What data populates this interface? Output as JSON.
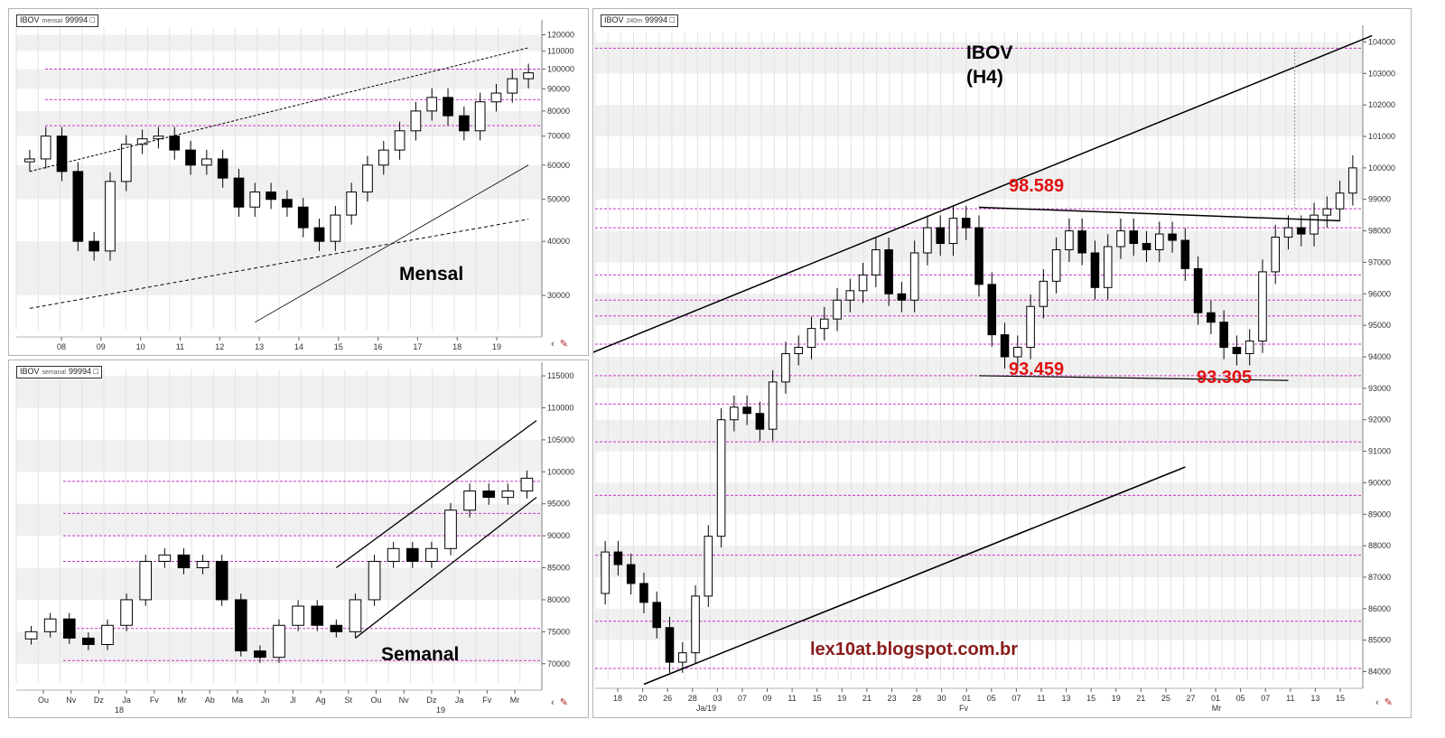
{
  "colors": {
    "band": "#f0f0f0",
    "dotted": "#cc33cc",
    "red_label": "#e01010",
    "brand": "#8a1a1a"
  },
  "panels": {
    "monthly": {
      "symbol": "IBOV",
      "interval": "mensal",
      "last": "99994",
      "label": "Mensal",
      "y_ticks": [
        "120000",
        "110000",
        "100000",
        "90000",
        "80000",
        "70000",
        "60000",
        "50000",
        "40000",
        "30000"
      ],
      "x_ticks": [
        "08",
        "09",
        "10",
        "11",
        "12",
        "13",
        "14",
        "15",
        "16",
        "17",
        "18",
        "19"
      ]
    },
    "weekly": {
      "symbol": "IBOV",
      "interval": "semanal",
      "last": "99994",
      "label": "Semanal",
      "y_ticks": [
        "115000",
        "110000",
        "105000",
        "100000",
        "95000",
        "90000",
        "85000",
        "80000",
        "75000",
        "70000"
      ],
      "x_ticks": [
        "Ou",
        "Nv",
        "Dz",
        "Ja",
        "Fv",
        "Mr",
        "Ab",
        "Ma",
        "Jn",
        "Jl",
        "Ag",
        "St",
        "Ou",
        "Nv",
        "Dz",
        "Ja",
        "Fv",
        "Mr"
      ],
      "x_sub": [
        "18",
        "19"
      ]
    },
    "h4": {
      "symbol": "IBOV",
      "interval": "240m",
      "last": "99994",
      "title_line1": "IBOV",
      "title_line2": "(H4)",
      "y_ticks": [
        "104000",
        "103000",
        "102000",
        "101000",
        "100000",
        "99000",
        "98000",
        "97000",
        "96000",
        "95000",
        "94000",
        "93000",
        "92000",
        "91000",
        "90000",
        "89000",
        "88000",
        "87000",
        "86000",
        "85000",
        "84000"
      ],
      "x_ticks": [
        "18",
        "20",
        "26",
        "28",
        "03",
        "07",
        "09",
        "11",
        "15",
        "19",
        "21",
        "23",
        "28",
        "30",
        "01",
        "05",
        "07",
        "11",
        "13",
        "15",
        "19",
        "21",
        "25",
        "27",
        "01",
        "05",
        "07",
        "11",
        "13",
        "15"
      ],
      "x_sub": [
        "Ja/19",
        "Fv",
        "Mr"
      ],
      "annotations": {
        "resistance": "98.589",
        "support_left": "93.459",
        "support_right": "93.305"
      },
      "watermark": "lex10at.blogspot.com.br"
    }
  },
  "chart_data": [
    {
      "type": "candlestick",
      "title": "IBOV mensal 99994",
      "x_ticks": [
        "08",
        "09",
        "10",
        "11",
        "12",
        "13",
        "14",
        "15",
        "16",
        "17",
        "18",
        "19"
      ],
      "series": [
        {
          "name": "IBOV",
          "values": [
            62000,
            70000,
            58000,
            40000,
            38000,
            55000,
            67000,
            69000,
            70000,
            65000,
            60000,
            62000,
            56000,
            48000,
            52000,
            50000,
            48000,
            43000,
            40000,
            46000,
            52000,
            60000,
            65000,
            72000,
            80000,
            86000,
            78000,
            72000,
            84000,
            88000,
            95000,
            98000
          ]
        }
      ],
      "ylim": [
        25000,
        125000
      ],
      "scale": "log"
    },
    {
      "type": "candlestick",
      "title": "IBOV semanal 99994",
      "x_ticks": [
        "Ou",
        "Nv",
        "Dz",
        "Ja",
        "Fv",
        "Mr",
        "Ab",
        "Ma",
        "Jn",
        "Jl",
        "Ag",
        "St",
        "Ou",
        "Nv",
        "Dz",
        "Ja",
        "Fv",
        "Mr"
      ],
      "series": [
        {
          "name": "IBOV",
          "values": [
            75000,
            77000,
            74000,
            73000,
            76000,
            80000,
            86000,
            87000,
            85000,
            86000,
            80000,
            72000,
            71000,
            76000,
            79000,
            76000,
            75000,
            80000,
            86000,
            88000,
            86000,
            88000,
            94000,
            97000,
            96000,
            97000,
            99000
          ]
        }
      ],
      "ylim": [
        67000,
        116000
      ]
    },
    {
      "type": "candlestick",
      "title": "IBOV 240m 99994",
      "x_ticks": [
        "18",
        "20",
        "26",
        "28",
        "03",
        "07",
        "09",
        "11",
        "15",
        "19",
        "21",
        "23",
        "28",
        "30",
        "01",
        "05",
        "07",
        "11",
        "13",
        "15",
        "19",
        "21",
        "25",
        "27",
        "01",
        "05",
        "07",
        "11",
        "13",
        "15"
      ],
      "series": [
        {
          "name": "IBOV",
          "values": [
            87800,
            87400,
            86800,
            86200,
            85400,
            84300,
            84600,
            86400,
            88300,
            92000,
            92400,
            92200,
            91700,
            93200,
            94100,
            94300,
            94900,
            95200,
            95800,
            96100,
            96600,
            97400,
            96000,
            95800,
            97300,
            98100,
            97600,
            98400,
            98100,
            96300,
            94700,
            94000,
            94300,
            95600,
            96400,
            97400,
            98000,
            97300,
            96200,
            97500,
            98000,
            97600,
            97400,
            97900,
            97700,
            96800,
            95400,
            95100,
            94300,
            94100,
            94500,
            96700,
            97800,
            98100,
            97900,
            98500,
            98700,
            99200,
            100000
          ]
        }
      ],
      "ylim": [
        83700,
        104300
      ],
      "annotations": [
        {
          "label": "98.589",
          "value": 98589
        },
        {
          "label": "93.459",
          "value": 93459
        },
        {
          "label": "93.305",
          "value": 93305
        }
      ]
    }
  ]
}
